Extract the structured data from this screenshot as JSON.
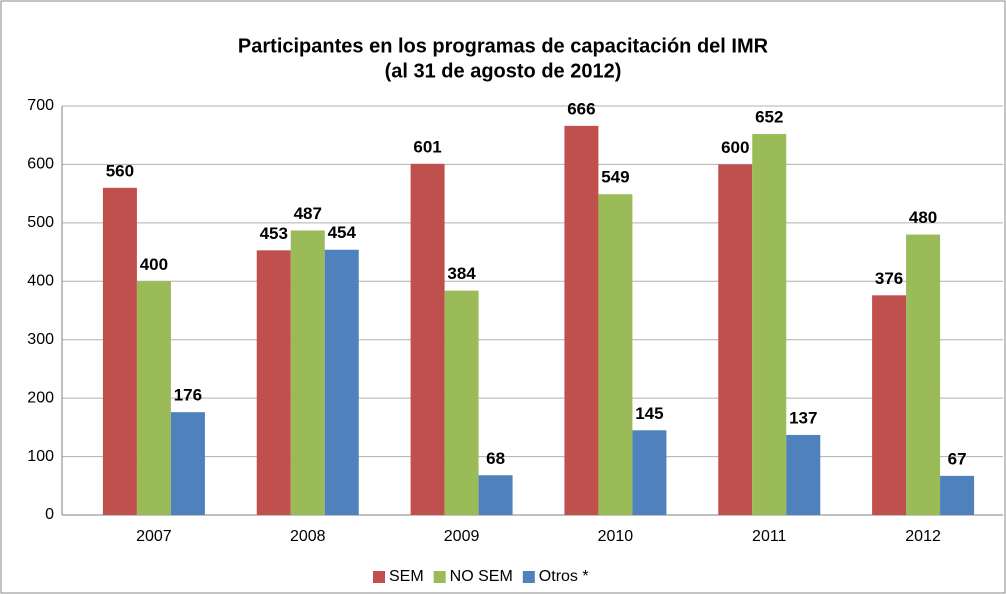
{
  "chart_data": {
    "type": "bar",
    "title": "Participantes  en los programas  de capacitación  del IMR",
    "subtitle": "(al 31 de agosto de 2012)",
    "categories": [
      "2007",
      "2008",
      "2009",
      "2010",
      "2011",
      "2012"
    ],
    "series": [
      {
        "name": "SEM",
        "color": "#c0504d",
        "values": [
          560,
          453,
          601,
          666,
          600,
          376
        ]
      },
      {
        "name": "NO SEM",
        "color": "#9bbb59",
        "values": [
          400,
          487,
          384,
          549,
          652,
          480
        ]
      },
      {
        "name": "Otros *",
        "color": "#4f81bd",
        "values": [
          176,
          454,
          68,
          145,
          137,
          67
        ]
      }
    ],
    "ylim": [
      0,
      700
    ],
    "yticks": [
      0,
      100,
      200,
      300,
      400,
      500,
      600,
      700
    ],
    "grid": true,
    "legend": "bottom"
  }
}
